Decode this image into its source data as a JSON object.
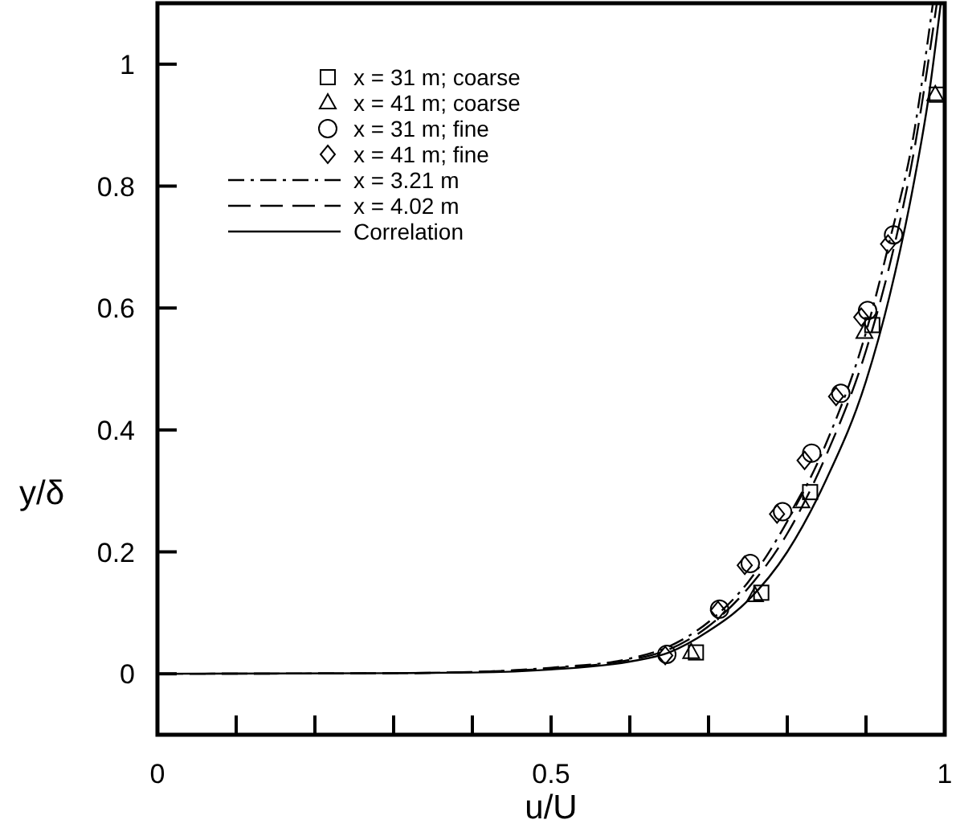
{
  "chart_data": {
    "type": "scatter",
    "xlabel": "u/U",
    "ylabel": "y/δ",
    "xlim": [
      0,
      1
    ],
    "ylim": [
      -0.1,
      1.1
    ],
    "xticks": [
      0,
      {
        "value": 0.1,
        "label": null
      },
      {
        "value": 0.2,
        "label": null
      },
      {
        "value": 0.3,
        "label": null
      },
      {
        "value": 0.4,
        "label": null
      },
      0.5,
      {
        "value": 0.6,
        "label": null
      },
      {
        "value": 0.7,
        "label": null
      },
      {
        "value": 0.8,
        "label": null
      },
      {
        "value": 0.9,
        "label": null
      },
      1
    ],
    "yticks": [
      0,
      0.2,
      0.4,
      0.6,
      0.8,
      1
    ],
    "grid": false,
    "legend": "top left",
    "series": [
      {
        "name": "x = 31 m; coarse",
        "marker": "square",
        "color": "#000000",
        "x": [
          0.684,
          0.767,
          0.829,
          0.908,
          0.99
        ],
        "values": [
          0.035,
          0.133,
          0.298,
          0.572,
          0.95
        ]
      },
      {
        "name": "x = 41 m; coarse",
        "marker": "triangle",
        "color": "#000000",
        "x": [
          0.678,
          0.759,
          0.818,
          0.898,
          0.988
        ],
        "values": [
          0.035,
          0.128,
          0.282,
          0.56,
          0.95
        ]
      },
      {
        "name": "x = 31 m; fine",
        "marker": "circle",
        "color": "#000000",
        "x": [
          0.647,
          0.714,
          0.753,
          0.794,
          0.831,
          0.868,
          0.902,
          0.935
        ],
        "values": [
          0.032,
          0.106,
          0.181,
          0.266,
          0.362,
          0.46,
          0.596,
          0.72
        ]
      },
      {
        "name": "x = 41 m; fine",
        "marker": "diamond",
        "color": "#000000",
        "x": [
          0.645,
          0.712,
          0.746,
          0.787,
          0.822,
          0.862,
          0.894,
          0.928
        ],
        "values": [
          0.03,
          0.104,
          0.178,
          0.262,
          0.35,
          0.455,
          0.585,
          0.705
        ]
      },
      {
        "name": "x = 3.21 m",
        "type": "line",
        "line_style": "dashdot",
        "color": "#000000",
        "x": [
          0,
          0.3,
          0.4,
          0.5,
          0.6,
          0.65,
          0.7,
          0.75,
          0.8,
          0.85,
          0.9,
          0.93,
          0.96,
          0.985
        ],
        "values": [
          0,
          0.001,
          0.003,
          0.01,
          0.025,
          0.045,
          0.085,
          0.15,
          0.25,
          0.38,
          0.56,
          0.71,
          0.88,
          1.1
        ]
      },
      {
        "name": "x = 4.02 m",
        "type": "line",
        "line_style": "dashed",
        "color": "#000000",
        "x": [
          0,
          0.3,
          0.4,
          0.5,
          0.6,
          0.65,
          0.7,
          0.75,
          0.8,
          0.85,
          0.9,
          0.93,
          0.96,
          0.99
        ],
        "values": [
          0,
          0.001,
          0.003,
          0.009,
          0.023,
          0.04,
          0.078,
          0.14,
          0.23,
          0.36,
          0.53,
          0.67,
          0.85,
          1.1
        ]
      },
      {
        "name": "Correlation",
        "type": "line",
        "line_style": "solid",
        "color": "#000000",
        "x": [
          0,
          0.3,
          0.4,
          0.5,
          0.6,
          0.65,
          0.7,
          0.75,
          0.8,
          0.85,
          0.9,
          0.93,
          0.96,
          0.98,
          0.995
        ],
        "values": [
          0,
          0.001,
          0.002,
          0.007,
          0.02,
          0.035,
          0.07,
          0.12,
          0.2,
          0.32,
          0.48,
          0.62,
          0.8,
          0.95,
          1.1
        ]
      }
    ]
  }
}
